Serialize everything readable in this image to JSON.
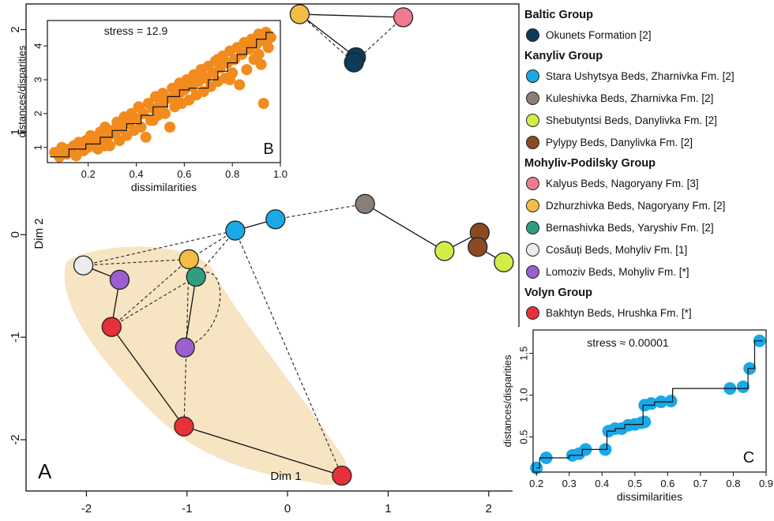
{
  "chart_data": [
    {
      "panel": "A",
      "type": "scatter",
      "xlabel": "Dim 1",
      "ylabel": "Dim 2",
      "xlim": [
        -2.6,
        2.3
      ],
      "ylim": [
        -2.5,
        2.25
      ],
      "xticks": [
        -2,
        -1,
        0,
        1,
        2
      ],
      "yticks": [
        -2,
        -1,
        0,
        1,
        2
      ],
      "points": [
        {
          "id": "okunets1",
          "x": 0.68,
          "y": 1.73,
          "color": "#0d3b5a"
        },
        {
          "id": "okunets2",
          "x": 0.66,
          "y": 1.68,
          "color": "#0d3b5a"
        },
        {
          "id": "dzhurz_top",
          "x": 0.12,
          "y": 2.15,
          "color": "#f2bd42"
        },
        {
          "id": "kalyus",
          "x": 1.15,
          "y": 2.12,
          "color": "#f07a8e"
        },
        {
          "id": "kuleshivka",
          "x": 0.77,
          "y": 0.3,
          "color": "#8a7f78"
        },
        {
          "id": "stara1",
          "x": -0.52,
          "y": 0.04,
          "color": "#1aa8e6"
        },
        {
          "id": "stara2",
          "x": -0.12,
          "y": 0.15,
          "color": "#1aa8e6"
        },
        {
          "id": "pylypy1",
          "x": 1.91,
          "y": 0.02,
          "color": "#8b4a22"
        },
        {
          "id": "pylypy2",
          "x": 1.89,
          "y": -0.12,
          "color": "#8b4a22"
        },
        {
          "id": "shebutyntsi1",
          "x": 1.56,
          "y": -0.16,
          "color": "#d4ec48"
        },
        {
          "id": "shebutyntsi2",
          "x": 2.15,
          "y": -0.27,
          "color": "#d4ec48"
        },
        {
          "id": "cosauti",
          "x": -2.03,
          "y": -0.3,
          "color": "#ececec"
        },
        {
          "id": "lomoziv1",
          "x": -1.67,
          "y": -0.44,
          "color": "#9b5fcf"
        },
        {
          "id": "dzhurz2",
          "x": -0.98,
          "y": -0.24,
          "color": "#f2bd42"
        },
        {
          "id": "bernashivka",
          "x": -0.91,
          "y": -0.41,
          "color": "#2f9e80"
        },
        {
          "id": "bakhtyn1",
          "x": -1.75,
          "y": -0.9,
          "color": "#e8303a"
        },
        {
          "id": "lomoziv2",
          "x": -1.02,
          "y": -1.1,
          "color": "#9b5fcf"
        },
        {
          "id": "bakhtyn2",
          "x": -1.03,
          "y": -1.87,
          "color": "#e8303a"
        },
        {
          "id": "bakhtyn3",
          "x": 0.54,
          "y": -2.35,
          "color": "#e8303a"
        }
      ],
      "solid_edges": [
        [
          "dzhurz_top",
          "kalyus"
        ],
        [
          "dzhurz_top",
          "okunets1"
        ],
        [
          "stara1",
          "stara2"
        ],
        [
          "kuleshivka",
          "shebutyntsi1"
        ],
        [
          "shebutyntsi1",
          "pylypy1"
        ],
        [
          "pylypy1",
          "pylypy2"
        ],
        [
          "pylypy2",
          "shebutyntsi2"
        ],
        [
          "cosauti",
          "lomoziv1"
        ],
        [
          "lomoziv1",
          "bakhtyn1"
        ],
        [
          "bakhtyn1",
          "bakhtyn2"
        ],
        [
          "bakhtyn2",
          "bakhtyn3"
        ],
        [
          "dzhurz2",
          "bernashivka"
        ],
        [
          "bernashivka",
          "lomoziv2"
        ]
      ],
      "dashed_edges": [
        [
          "dzhurz_top",
          "okunets2"
        ],
        [
          "kalyus",
          "okunets2"
        ],
        [
          "stara2",
          "kuleshivka"
        ],
        [
          "cosauti",
          "stara1"
        ],
        [
          "stara1",
          "dzhurz2"
        ],
        [
          "stara1",
          "bernashivka"
        ],
        [
          "stara1",
          "bakhtyn3"
        ],
        [
          "cosauti",
          "dzhurz2"
        ],
        [
          "bakhtyn1",
          "dzhurz2"
        ],
        [
          "bakhtyn1",
          "bernashivka"
        ],
        [
          "dzhurz2",
          "bakhtyn2"
        ],
        [
          "lomoziv2",
          "bernashivka"
        ]
      ],
      "highlight_region_color": "#f7e4c3",
      "panel_label": "A"
    },
    {
      "panel": "B",
      "type": "scatter",
      "xlabel": "dissimilarities",
      "ylabel": "distances/disparities",
      "annotation": "stress = 12.9",
      "panel_label": "B",
      "xlim": [
        0.03,
        1.0
      ],
      "ylim": [
        0.55,
        4.75
      ],
      "xticks": [
        0.2,
        0.4,
        0.6,
        0.8,
        1.0
      ],
      "xtick_labels": [
        "0.2",
        "0.4",
        "0.6",
        "0.8",
        "1.0"
      ],
      "yticks": [
        1,
        2,
        3,
        4
      ],
      "color": "#f28b1e",
      "points": [
        [
          0.06,
          0.85
        ],
        [
          0.08,
          0.72
        ],
        [
          0.09,
          1.0
        ],
        [
          0.11,
          0.8
        ],
        [
          0.12,
          0.95
        ],
        [
          0.14,
          1.05
        ],
        [
          0.15,
          0.75
        ],
        [
          0.16,
          1.15
        ],
        [
          0.18,
          0.9
        ],
        [
          0.19,
          1.2
        ],
        [
          0.2,
          1.0
        ],
        [
          0.21,
          1.35
        ],
        [
          0.22,
          1.1
        ],
        [
          0.23,
          1.25
        ],
        [
          0.24,
          0.95
        ],
        [
          0.25,
          1.45
        ],
        [
          0.26,
          1.2
        ],
        [
          0.27,
          1.6
        ],
        [
          0.28,
          1.3
        ],
        [
          0.29,
          1.05
        ],
        [
          0.3,
          1.5
        ],
        [
          0.31,
          1.4
        ],
        [
          0.32,
          1.75
        ],
        [
          0.33,
          1.2
        ],
        [
          0.34,
          1.6
        ],
        [
          0.35,
          1.9
        ],
        [
          0.36,
          1.35
        ],
        [
          0.37,
          1.7
        ],
        [
          0.38,
          2.0
        ],
        [
          0.39,
          1.5
        ],
        [
          0.4,
          1.85
        ],
        [
          0.41,
          2.2
        ],
        [
          0.42,
          1.6
        ],
        [
          0.43,
          2.0
        ],
        [
          0.44,
          1.3
        ],
        [
          0.45,
          2.3
        ],
        [
          0.46,
          1.8
        ],
        [
          0.47,
          2.15
        ],
        [
          0.48,
          2.5
        ],
        [
          0.49,
          1.95
        ],
        [
          0.5,
          2.3
        ],
        [
          0.51,
          2.6
        ],
        [
          0.52,
          2.0
        ],
        [
          0.53,
          2.45
        ],
        [
          0.54,
          1.6
        ],
        [
          0.55,
          2.75
        ],
        [
          0.56,
          2.2
        ],
        [
          0.57,
          2.55
        ],
        [
          0.58,
          2.9
        ],
        [
          0.59,
          2.3
        ],
        [
          0.6,
          2.7
        ],
        [
          0.61,
          3.0
        ],
        [
          0.62,
          2.4
        ],
        [
          0.63,
          2.8
        ],
        [
          0.64,
          3.15
        ],
        [
          0.65,
          2.55
        ],
        [
          0.66,
          2.95
        ],
        [
          0.67,
          3.3
        ],
        [
          0.68,
          2.65
        ],
        [
          0.69,
          3.05
        ],
        [
          0.7,
          3.4
        ],
        [
          0.71,
          2.8
        ],
        [
          0.72,
          3.2
        ],
        [
          0.73,
          3.55
        ],
        [
          0.74,
          2.95
        ],
        [
          0.75,
          3.35
        ],
        [
          0.76,
          3.7
        ],
        [
          0.77,
          3.05
        ],
        [
          0.78,
          3.5
        ],
        [
          0.79,
          3.85
        ],
        [
          0.8,
          3.2
        ],
        [
          0.81,
          3.6
        ],
        [
          0.82,
          3.95
        ],
        [
          0.83,
          2.85
        ],
        [
          0.84,
          3.75
        ],
        [
          0.85,
          4.1
        ],
        [
          0.86,
          3.3
        ],
        [
          0.87,
          3.9
        ],
        [
          0.88,
          4.2
        ],
        [
          0.89,
          3.6
        ],
        [
          0.9,
          4.05
        ],
        [
          0.91,
          4.35
        ],
        [
          0.92,
          3.45
        ],
        [
          0.93,
          4.15
        ],
        [
          0.94,
          4.4
        ],
        [
          0.95,
          3.95
        ],
        [
          0.96,
          4.25
        ],
        [
          0.62,
          2.95
        ],
        [
          0.68,
          3.1
        ],
        [
          0.74,
          3.6
        ],
        [
          0.79,
          3.0
        ],
        [
          0.86,
          4.05
        ],
        [
          0.91,
          3.75
        ],
        [
          0.55,
          2.45
        ],
        [
          0.47,
          1.8
        ],
        [
          0.33,
          1.55
        ],
        [
          0.27,
          1.05
        ],
        [
          0.58,
          2.6
        ],
        [
          0.93,
          2.3
        ],
        [
          0.51,
          2.2
        ]
      ],
      "step_fit": [
        [
          0.04,
          0.72
        ],
        [
          0.12,
          0.72
        ],
        [
          0.12,
          0.95
        ],
        [
          0.19,
          0.95
        ],
        [
          0.19,
          1.1
        ],
        [
          0.25,
          1.1
        ],
        [
          0.25,
          1.3
        ],
        [
          0.3,
          1.3
        ],
        [
          0.3,
          1.5
        ],
        [
          0.36,
          1.5
        ],
        [
          0.36,
          1.7
        ],
        [
          0.42,
          1.7
        ],
        [
          0.42,
          1.95
        ],
        [
          0.47,
          1.95
        ],
        [
          0.47,
          2.2
        ],
        [
          0.53,
          2.2
        ],
        [
          0.53,
          2.5
        ],
        [
          0.58,
          2.5
        ],
        [
          0.58,
          2.7
        ],
        [
          0.62,
          2.7
        ],
        [
          0.62,
          2.75
        ],
        [
          0.7,
          2.75
        ],
        [
          0.7,
          3.0
        ],
        [
          0.74,
          3.0
        ],
        [
          0.74,
          3.25
        ],
        [
          0.78,
          3.25
        ],
        [
          0.78,
          3.5
        ],
        [
          0.82,
          3.5
        ],
        [
          0.82,
          3.75
        ],
        [
          0.86,
          3.75
        ],
        [
          0.86,
          3.95
        ],
        [
          0.9,
          3.95
        ],
        [
          0.9,
          4.2
        ],
        [
          0.94,
          4.2
        ],
        [
          0.94,
          4.4
        ],
        [
          0.97,
          4.4
        ]
      ]
    },
    {
      "panel": "C",
      "type": "scatter",
      "xlabel": "dissimilarities",
      "ylabel": "distances/disparities",
      "annotation": "stress ≈ 0.00001",
      "panel_label": "C",
      "xlim": [
        0.19,
        0.9
      ],
      "ylim": [
        0.08,
        1.78
      ],
      "xticks": [
        0.2,
        0.3,
        0.4,
        0.5,
        0.6,
        0.7,
        0.8,
        0.9
      ],
      "yticks": [
        0.5,
        1.0,
        1.5
      ],
      "ytick_labels": [
        "0.5",
        "1.0",
        "1.5"
      ],
      "color": "#1aa8e6",
      "points": [
        [
          0.2,
          0.13
        ],
        [
          0.23,
          0.25
        ],
        [
          0.31,
          0.28
        ],
        [
          0.33,
          0.3
        ],
        [
          0.35,
          0.35
        ],
        [
          0.41,
          0.35
        ],
        [
          0.42,
          0.57
        ],
        [
          0.44,
          0.6
        ],
        [
          0.46,
          0.6
        ],
        [
          0.48,
          0.64
        ],
        [
          0.5,
          0.65
        ],
        [
          0.52,
          0.67
        ],
        [
          0.53,
          0.68
        ],
        [
          0.53,
          0.88
        ],
        [
          0.55,
          0.9
        ],
        [
          0.58,
          0.92
        ],
        [
          0.61,
          0.93
        ],
        [
          0.79,
          1.08
        ],
        [
          0.83,
          1.1
        ],
        [
          0.85,
          1.32
        ],
        [
          0.88,
          1.65
        ]
      ],
      "step_fit": [
        [
          0.2,
          0.13
        ],
        [
          0.21,
          0.13
        ],
        [
          0.21,
          0.25
        ],
        [
          0.3,
          0.25
        ],
        [
          0.3,
          0.28
        ],
        [
          0.34,
          0.28
        ],
        [
          0.34,
          0.35
        ],
        [
          0.415,
          0.35
        ],
        [
          0.415,
          0.57
        ],
        [
          0.44,
          0.57
        ],
        [
          0.44,
          0.6
        ],
        [
          0.47,
          0.6
        ],
        [
          0.47,
          0.65
        ],
        [
          0.525,
          0.65
        ],
        [
          0.525,
          0.88
        ],
        [
          0.56,
          0.88
        ],
        [
          0.56,
          0.92
        ],
        [
          0.615,
          0.92
        ],
        [
          0.615,
          1.08
        ],
        [
          0.845,
          1.08
        ],
        [
          0.845,
          1.32
        ],
        [
          0.865,
          1.32
        ],
        [
          0.865,
          1.65
        ],
        [
          0.89,
          1.65
        ]
      ]
    }
  ],
  "legend": {
    "groups": [
      {
        "title": "Baltic Group",
        "items": [
          {
            "label": "Okunets Formation [2]",
            "color": "#0d3b5a"
          }
        ]
      },
      {
        "title": "Kanyliv Group",
        "items": [
          {
            "label": "Stara Ushytsya Beds, Zharnivka Fm. [2]",
            "color": "#1aa8e6"
          },
          {
            "label": "Kuleshivka Beds, Zharnivka Fm. [2]",
            "color": "#8a7f78"
          },
          {
            "label": "Shebutyntsi Beds, Danylivka Fm. [2]",
            "color": "#d4ec48"
          },
          {
            "label": "Pylypy Beds, Danylivka Fm. [2]",
            "color": "#8b4a22"
          }
        ]
      },
      {
        "title": "Mohyliv-Podilsky Group",
        "items": [
          {
            "label": "Kalyus Beds, Nagoryany Fm. [3]",
            "color": "#f07a8e"
          },
          {
            "label": "Dzhurzhivka Beds, Nagoryany Fm. [2]",
            "color": "#f2bd42"
          },
          {
            "label": "Bernashivka Beds, Yaryshiv Fm. [2]",
            "color": "#2f9e80"
          },
          {
            "label": "Cosăuți Beds, Mohyliv Fm. [1]",
            "color": "#ececec"
          },
          {
            "label": "Lomoziv Beds, Mohyliv Fm. [*]",
            "color": "#9b5fcf"
          }
        ]
      },
      {
        "title": "Volyn Group",
        "items": [
          {
            "label": "Bakhtyn Beds, Hrushka Fm. [*]",
            "color": "#e8303a"
          }
        ]
      }
    ]
  }
}
